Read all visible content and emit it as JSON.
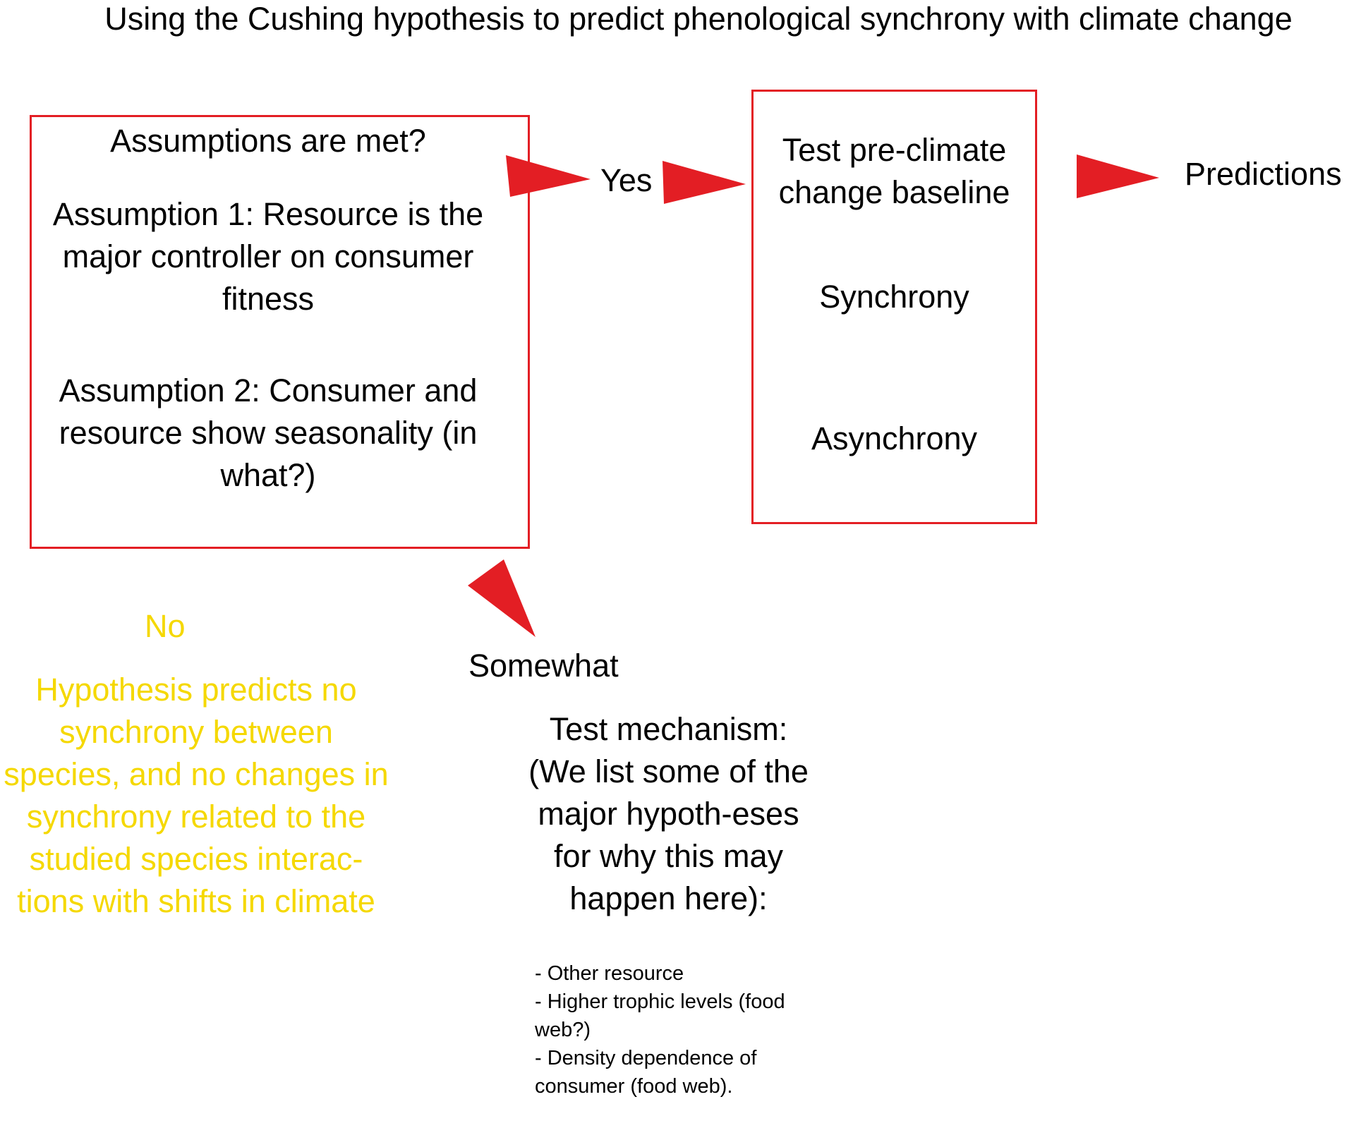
{
  "title": "Using the Cushing hypothesis to predict phenological synchrony with climate change",
  "colors": {
    "box_border": "#e31e24",
    "arrow": "#e31e24",
    "no_branch_text": "#f5d800",
    "text": "#000000"
  },
  "assumptions_box": {
    "heading": "Assumptions are met?",
    "assumption1": "Assumption 1: Resource is the major controller on consumer fitness",
    "assumption2": "Assumption 2: Consumer and resource show seasonality (in what?)"
  },
  "yes_label": "Yes",
  "baseline_box": {
    "heading": "Test pre-climate change baseline",
    "option1": "Synchrony",
    "option2": "Asynchrony"
  },
  "predictions_label": "Predictions",
  "somewhat_label": "Somewhat",
  "no_branch": {
    "label": "No",
    "text": "Hypothesis predicts no synchrony between species, and no changes in synchrony related to the studied species interac-tions with shifts in climate"
  },
  "mechanism": {
    "heading": "Test mechanism: (We list some of the major hypoth-eses for why this may happen here):",
    "items": [
      "- Other resource",
      "- Higher trophic levels (food web?)",
      "- Density dependence of consumer (food web)."
    ]
  }
}
